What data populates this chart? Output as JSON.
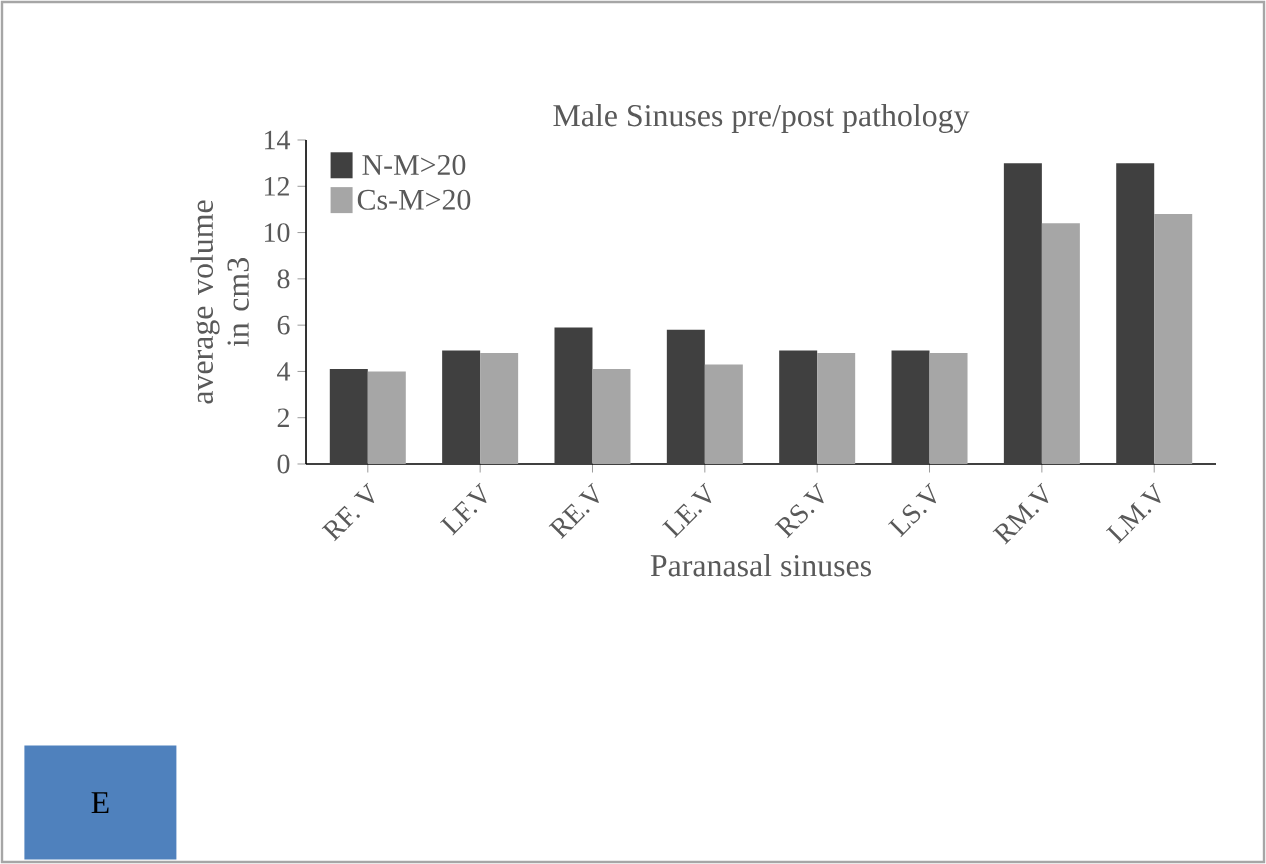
{
  "chart_data": {
    "type": "bar",
    "title": "Male Sinuses pre/post pathology",
    "xlabel": "Paranasal sinuses",
    "ylabel": "average volume in cm3",
    "categories": [
      "RF. V",
      "LF.V",
      "RE.V",
      "LE.V",
      "RS.V",
      "LS.V",
      "RM.V",
      "LM.V"
    ],
    "series": [
      {
        "name": "N-M>20",
        "color": "#404040",
        "values": [
          4.1,
          4.9,
          5.9,
          5.8,
          4.9,
          4.9,
          13.0,
          13.0
        ]
      },
      {
        "name": "Cs-M>20",
        "color": "#a6a6a6",
        "values": [
          4.0,
          4.8,
          4.1,
          4.3,
          4.8,
          4.8,
          10.4,
          10.8
        ]
      }
    ],
    "ylim": [
      0,
      14
    ],
    "yticks": [
      0,
      2,
      4,
      6,
      8,
      10,
      12,
      14
    ],
    "legend": "top left",
    "grid": false,
    "annotations": [
      "E"
    ]
  }
}
